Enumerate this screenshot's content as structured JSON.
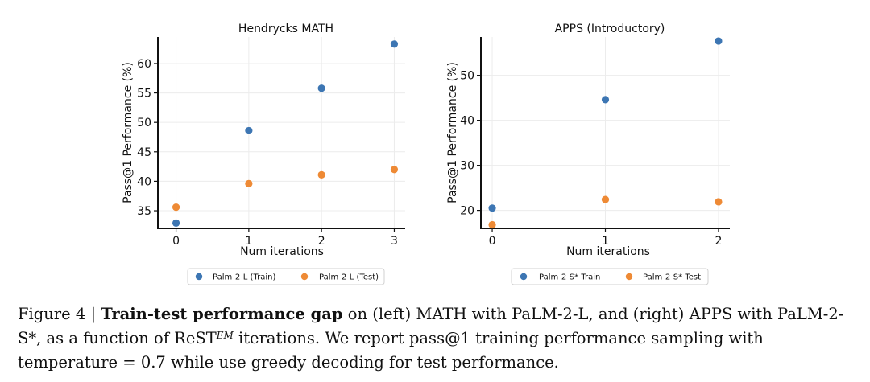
{
  "colors": {
    "train": "#3d76b3",
    "test": "#ee8a35"
  },
  "chart_data": [
    {
      "type": "scatter",
      "title": "Hendrycks MATH",
      "xlabel": "Num iterations",
      "ylabel": "Pass@1 Performance (%)",
      "xlim": [
        -0.25,
        3.15
      ],
      "ylim": [
        32,
        64.5
      ],
      "xticks": [
        0,
        1,
        2,
        3
      ],
      "yticks": [
        35,
        40,
        45,
        50,
        55,
        60
      ],
      "series": [
        {
          "name": "Palm-2-L (Train)",
          "color": "#3d76b3",
          "x": [
            0,
            1,
            2,
            3
          ],
          "y": [
            32.9,
            48.6,
            55.8,
            63.3
          ]
        },
        {
          "name": "Palm-2-L (Test)",
          "color": "#ee8a35",
          "x": [
            0,
            1,
            2,
            3
          ],
          "y": [
            35.6,
            39.6,
            41.1,
            42.0
          ]
        }
      ],
      "legend": "below"
    },
    {
      "type": "scatter",
      "title": "APPS (Introductory)",
      "xlabel": "Num iterations",
      "ylabel": "Pass@1 Performance (%)",
      "xlim": [
        -0.1,
        2.1
      ],
      "ylim": [
        16,
        58.5
      ],
      "xticks": [
        0,
        1,
        2
      ],
      "yticks": [
        20,
        30,
        40,
        50
      ],
      "series": [
        {
          "name": "Palm-2-S* Train",
          "color": "#3d76b3",
          "x": [
            0,
            1,
            2
          ],
          "y": [
            20.5,
            44.6,
            57.6
          ]
        },
        {
          "name": "Palm-2-S* Test",
          "color": "#ee8a35",
          "x": [
            0,
            1,
            2
          ],
          "y": [
            16.8,
            22.4,
            21.9
          ]
        }
      ],
      "legend": "below"
    }
  ],
  "caption": {
    "label": "Figure 4 | ",
    "bold": "Train-test performance gap",
    "text1": " on (left) MATH with PaLM-2-L, and (right) APPS with PaLM-2-S*, as a function of ReST",
    "superscript": "EM",
    "text2": " iterations. We report pass@1 training performance sampling with temperature = 0.7 while use greedy decoding for test performance."
  }
}
